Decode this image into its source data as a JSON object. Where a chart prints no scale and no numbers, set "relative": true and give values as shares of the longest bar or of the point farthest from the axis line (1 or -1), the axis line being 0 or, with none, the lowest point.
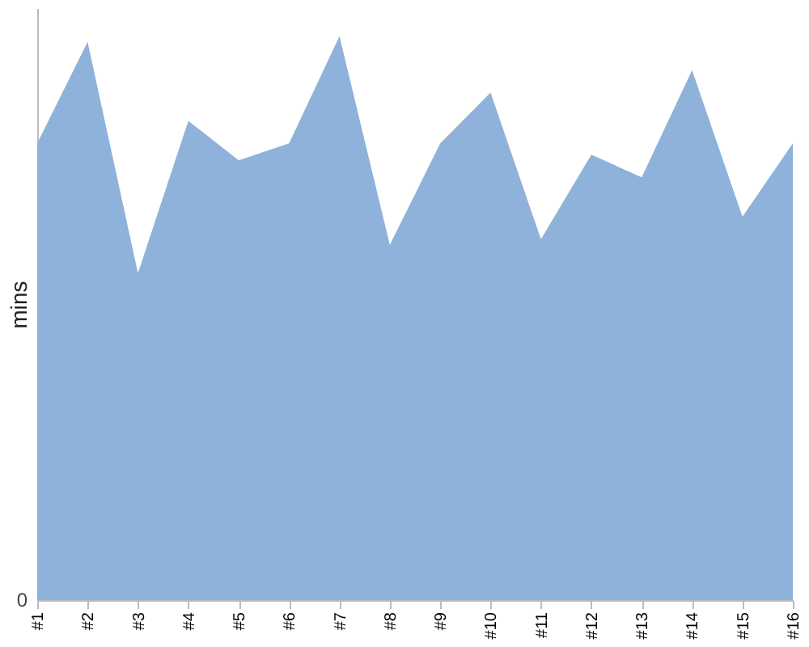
{
  "chart_data": {
    "type": "area",
    "ylabel": "mins",
    "relative": true,
    "annotations": [
      "0"
    ],
    "color": "#8fb2da",
    "categories": [
      "#1",
      "#2",
      "#3",
      "#4",
      "#5",
      "#6",
      "#7",
      "#8",
      "#9",
      "#10",
      "#11",
      "#12",
      "#13",
      "#14",
      "#15",
      "#16"
    ],
    "values": [
      0.81,
      0.99,
      0.58,
      0.85,
      0.78,
      0.81,
      1,
      0.63,
      0.81,
      0.9,
      0.64,
      0.79,
      0.75,
      0.94,
      0.68,
      0.81
    ]
  }
}
